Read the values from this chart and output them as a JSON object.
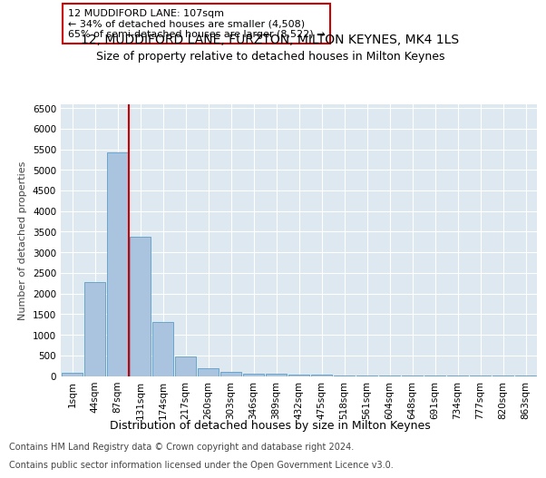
{
  "title1": "12, MUDDIFORD LANE, FURZTON, MILTON KEYNES, MK4 1LS",
  "title2": "Size of property relative to detached houses in Milton Keynes",
  "xlabel": "Distribution of detached houses by size in Milton Keynes",
  "ylabel": "Number of detached properties",
  "categories": [
    "1sqm",
    "44sqm",
    "87sqm",
    "131sqm",
    "174sqm",
    "217sqm",
    "260sqm",
    "303sqm",
    "346sqm",
    "389sqm",
    "432sqm",
    "475sqm",
    "518sqm",
    "561sqm",
    "604sqm",
    "648sqm",
    "691sqm",
    "734sqm",
    "777sqm",
    "820sqm",
    "863sqm"
  ],
  "values": [
    75,
    2280,
    5430,
    3380,
    1320,
    480,
    195,
    105,
    60,
    50,
    40,
    30,
    15,
    8,
    5,
    3,
    2,
    2,
    1,
    1,
    1
  ],
  "bar_color": "#aac4e0",
  "bar_edge_color": "#5a9ec9",
  "vline_x_index": 2.5,
  "vline_color": "#cc0000",
  "ylim": [
    0,
    6600
  ],
  "yticks": [
    0,
    500,
    1000,
    1500,
    2000,
    2500,
    3000,
    3500,
    4000,
    4500,
    5000,
    5500,
    6000,
    6500
  ],
  "annotation_text": "12 MUDDIFORD LANE: 107sqm\n← 34% of detached houses are smaller (4,508)\n65% of semi-detached houses are larger (8,522) →",
  "annotation_box_color": "#ffffff",
  "annotation_box_edge": "#cc0000",
  "footer1": "Contains HM Land Registry data © Crown copyright and database right 2024.",
  "footer2": "Contains public sector information licensed under the Open Government Licence v3.0.",
  "bg_color": "#dde8f0",
  "fig_bg_color": "#ffffff",
  "title1_fontsize": 10,
  "title2_fontsize": 9,
  "xlabel_fontsize": 9,
  "ylabel_fontsize": 8,
  "tick_fontsize": 7.5,
  "footer_fontsize": 7,
  "annotation_fontsize": 8
}
